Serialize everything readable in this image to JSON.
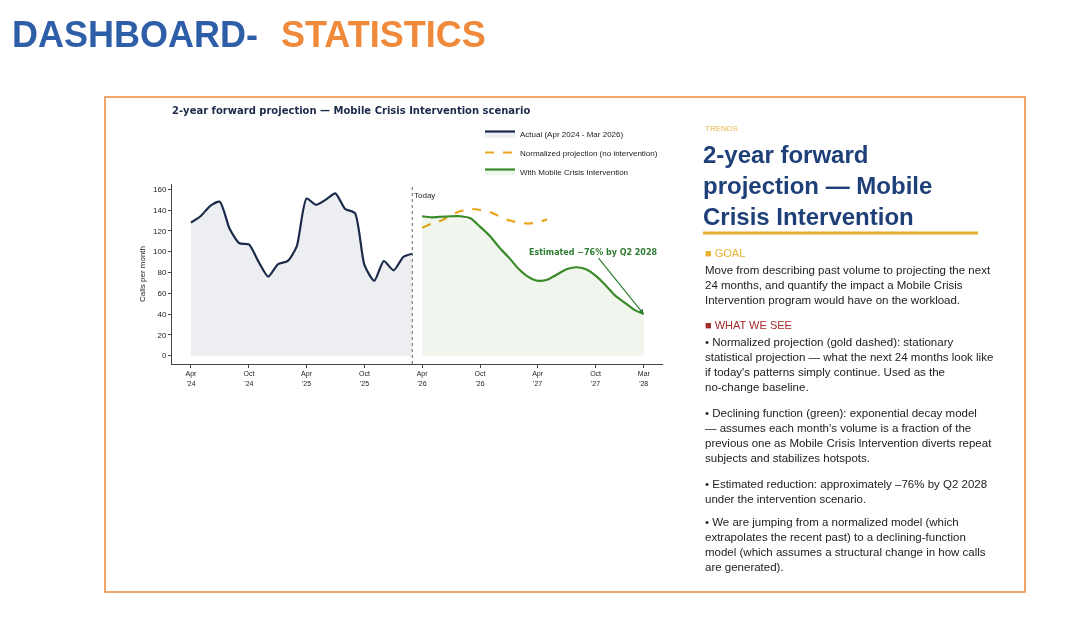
{
  "chart_data": [
    {
      "type": "other",
      "annotations": [
        "DASHBOARD-",
        "STATISTICS"
      ]
    },
    {
      "type": "line",
      "title": "2-year forward projection — Mobile Crisis Intervention scenario",
      "ylabel": "Calls per month",
      "series": [
        {
          "name": "Actual (Apr 2024 - Mar 2026)",
          "type": "area",
          "color": "#1b2a4a",
          "x": [
            "2024-04",
            "2024-05",
            "2024-06",
            "2024-07",
            "2024-08",
            "2024-09",
            "2024-10",
            "2024-11",
            "2024-12",
            "2025-01",
            "2025-02",
            "2025-03",
            "2025-04",
            "2025-05",
            "2025-06",
            "2025-07",
            "2025-08",
            "2025-09",
            "2025-10",
            "2025-11",
            "2025-12",
            "2026-01",
            "2026-02",
            "2026-03"
          ],
          "values": [
            128,
            134,
            144,
            148,
            122,
            108,
            107,
            90,
            76,
            88,
            91,
            105,
            151,
            145,
            150,
            156,
            141,
            137,
            87,
            72,
            91,
            82,
            95,
            98
          ]
        },
        {
          "name": "Normalized projection (no intervention)",
          "type": "line",
          "line_style": "dashed",
          "color": "#e8a820",
          "x": [
            "2026-04",
            "2026-05",
            "2026-06",
            "2026-07",
            "2026-08",
            "2026-09",
            "2026-10",
            "2026-11",
            "2026-12",
            "2027-01",
            "2027-02",
            "2027-03",
            "2027-04",
            "2027-05"
          ],
          "values": [
            123,
            127,
            130,
            135,
            139,
            141,
            140,
            138,
            134,
            130,
            128,
            127,
            128,
            131
          ]
        },
        {
          "name": "With Mobile Crisis Intervention",
          "type": "area",
          "color": "#3a8a2a",
          "x": [
            "2026-04",
            "2026-05",
            "2026-06",
            "2026-07",
            "2026-08",
            "2026-09",
            "2026-10",
            "2026-11",
            "2026-12",
            "2027-01",
            "2027-02",
            "2027-03",
            "2027-04",
            "2027-05",
            "2027-06",
            "2027-07",
            "2027-08",
            "2027-09",
            "2027-10",
            "2027-11",
            "2027-12",
            "2028-01",
            "2028-02",
            "2028-03"
          ],
          "values": [
            134,
            133,
            133.5,
            134,
            134,
            132,
            124,
            115,
            104,
            94,
            83,
            76,
            72,
            73,
            78,
            83,
            85,
            83,
            77,
            68,
            58,
            51,
            44,
            40
          ]
        }
      ],
      "xlim": [
        "2024-02",
        "2028-05"
      ],
      "xticks": [
        {
          "value": "2024-04",
          "label": "Apr\n'24"
        },
        {
          "value": "2024-10",
          "label": "Oct\n'24"
        },
        {
          "value": "2025-04",
          "label": "Apr\n'25"
        },
        {
          "value": "2025-10",
          "label": "Oct\n'25"
        },
        {
          "value": "2026-04",
          "label": "Apr\n'26"
        },
        {
          "value": "2026-10",
          "label": "Oct\n'26"
        },
        {
          "value": "2027-04",
          "label": "Apr\n'27"
        },
        {
          "value": "2027-10",
          "label": "Oct\n'27"
        },
        {
          "value": "2028-03",
          "label": "Mar\n'28"
        }
      ],
      "ylim": [
        -8,
        165
      ],
      "yticks": [
        0,
        20,
        40,
        60,
        80,
        100,
        120,
        140,
        160
      ],
      "ref_lines": [
        {
          "axis": "x",
          "value": "2026-03",
          "label": "Today",
          "color": "#666666",
          "line_style": "dotted"
        }
      ],
      "annotations": [
        {
          "text": "Estimated −76% by Q2 2028",
          "x": "2028-03",
          "y": 40
        }
      ],
      "legend": "top right",
      "marker": "none"
    },
    {
      "type": "other",
      "subtitle": "TRENDS",
      "title": "2-year forward\nprojection — Mobile\nCrisis Intervention",
      "annotations": [
        "■ GOAL",
        "Move from describing past volume to projecting the next\n24 months, and quantify the impact a Mobile Crisis\nIntervention program would have on the workload.",
        "■ WHAT WE SEE",
        "• Normalized projection (gold dashed): stationary\nstatistical projection — what the next 24 months look like\nif today's patterns simply continue. Used as the\nno-change baseline.",
        "• Declining function (green): exponential decay model\n— assumes each month's volume is a fraction of the\nprevious one as Mobile Crisis Intervention diverts repeat\nsubjects and stabilizes hotspots.",
        "• Estimated reduction: approximately –76% by Q2 2028\nunder the intervention scenario.",
        "• We are jumping from a normalized model (which\nextrapolates the recent past) to a declining-function\nmodel (which assumes a structural change in how calls\nare generated)."
      ]
    }
  ]
}
